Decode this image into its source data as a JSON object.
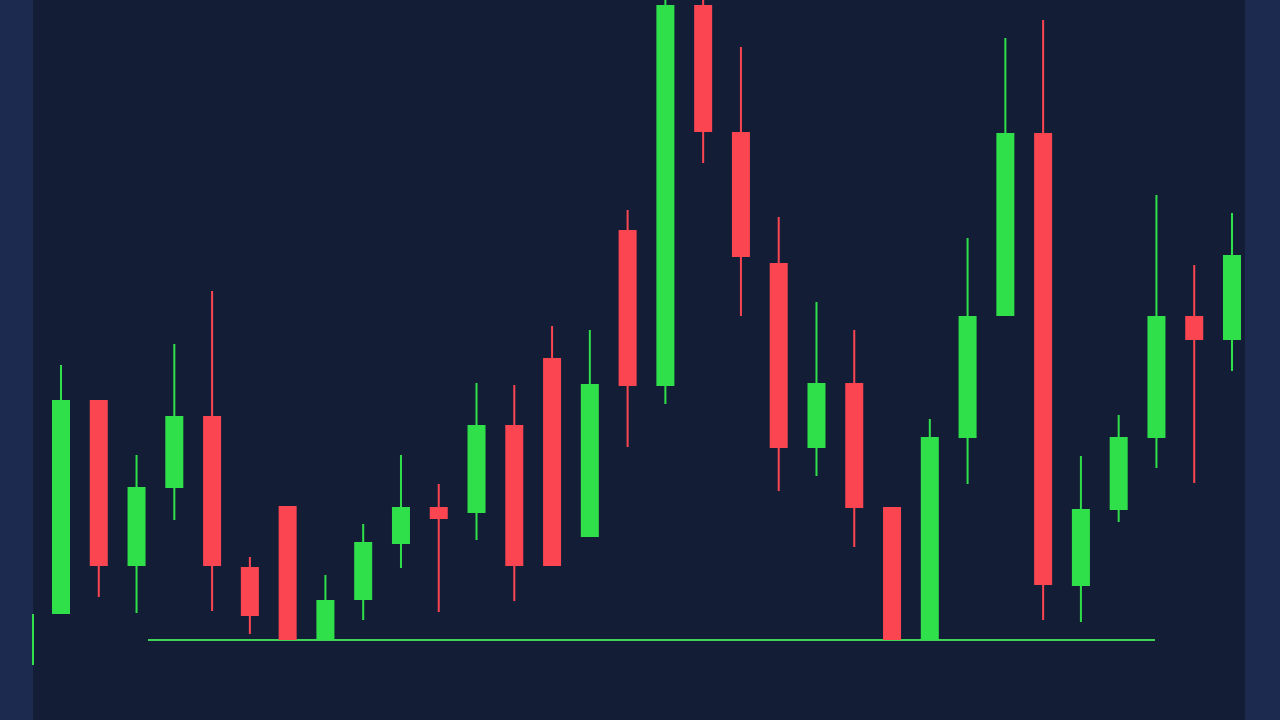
{
  "chart_data": {
    "type": "candlestick",
    "ylim": [
      0,
      720
    ],
    "up_color": "#2fe04a",
    "down_color": "#fb4551",
    "support_level": 80,
    "support_color": "#3fd457",
    "series": {
      "open": [
        106,
        320,
        154,
        232,
        304,
        153,
        214,
        80,
        120,
        176,
        213,
        207,
        295,
        362,
        183,
        490,
        334,
        715,
        588,
        457,
        272,
        337,
        213,
        80,
        282,
        404,
        587,
        134,
        210,
        282,
        404,
        380
      ],
      "high": [
        355,
        320,
        265,
        376,
        429,
        163,
        214,
        145,
        196,
        265,
        236,
        337,
        335,
        394,
        390,
        510,
        720,
        720,
        673,
        503,
        418,
        390,
        213,
        301,
        482,
        682,
        700,
        264,
        305,
        525,
        455,
        507
      ],
      "low": [
        106,
        123,
        107,
        200,
        109,
        86,
        80,
        80,
        100,
        152,
        108,
        180,
        119,
        154,
        183,
        273,
        316,
        557,
        404,
        229,
        244,
        173,
        80,
        80,
        236,
        404,
        100,
        98,
        198,
        252,
        237,
        349
      ],
      "close": [
        320,
        154,
        233,
        304,
        154,
        104,
        80,
        120,
        178,
        213,
        201,
        295,
        154,
        154,
        336,
        334,
        715,
        588,
        463,
        272,
        337,
        212,
        80,
        283,
        404,
        587,
        135,
        211,
        283,
        404,
        380,
        465
      ]
    }
  }
}
